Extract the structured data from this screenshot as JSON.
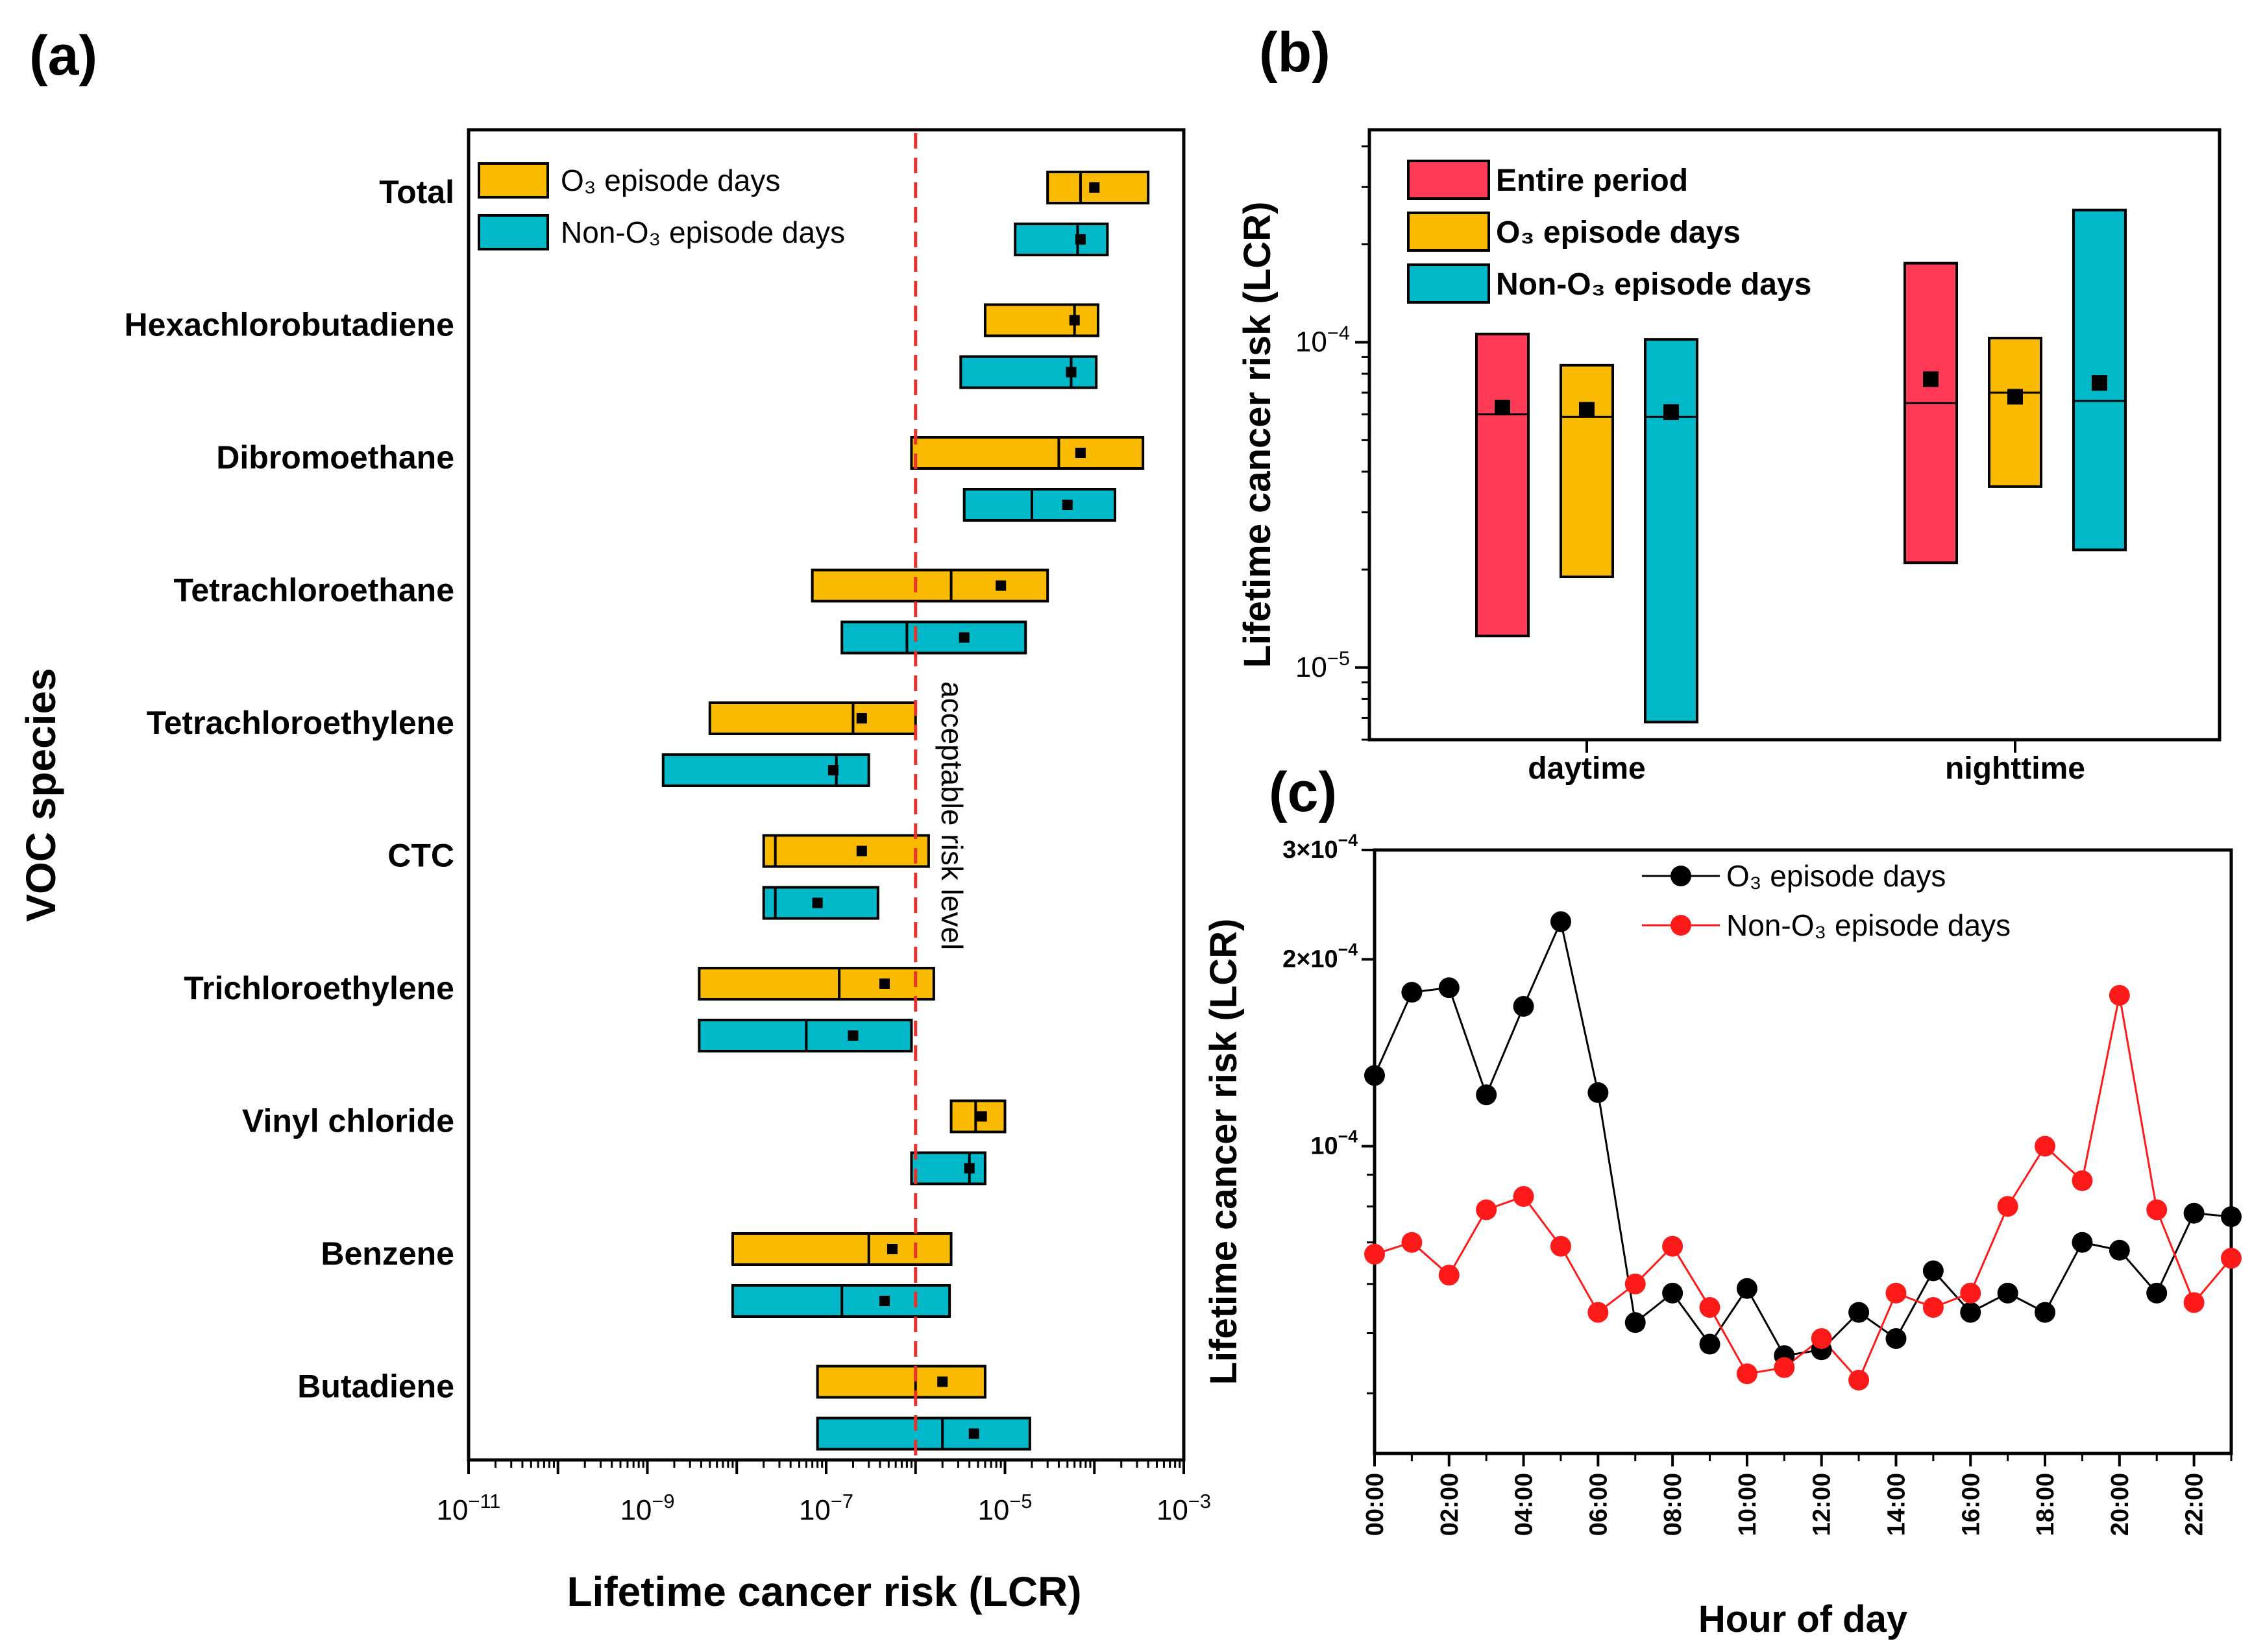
{
  "colors": {
    "o3": "#F9BA00",
    "non_o3": "#00B8C8",
    "entire": "#FF3B57",
    "line_o3": "#000000",
    "line_non_o3": "#FF1A1A",
    "threshold": "#E8312A"
  },
  "chart_data": [
    {
      "panel": "(a)",
      "type": "box",
      "scale": "log",
      "xlabel": "Lifetime cancer risk (LCR)",
      "ylabel": "VOC species",
      "xlim": [
        1e-11,
        0.001
      ],
      "xticks": [
        "10−11",
        "10−9",
        "10−7",
        "10−5",
        "10−3"
      ],
      "threshold": {
        "value": 1e-06,
        "label": "acceptable risk level"
      },
      "legend": [
        "O₃ episode days",
        "Non-O₃ episode days"
      ],
      "categories": [
        "Total",
        "Hexachlorobutadiene",
        "Dibromoethane",
        "Tetrachloroethane",
        "Tetrachloroethylene",
        "CTC",
        "Trichloroethylene",
        "Vinyl chloride",
        "Benzene",
        "Butadiene"
      ],
      "series": [
        {
          "name": "O₃ episode days",
          "boxes": [
            {
              "low": 3e-05,
              "median": 7e-05,
              "high": 0.0004,
              "mean": 0.0001
            },
            {
              "low": 6e-06,
              "median": 6e-05,
              "high": 0.00011,
              "mean": 6e-05
            },
            {
              "low": 9e-07,
              "median": 4e-05,
              "high": 0.00035,
              "mean": 7e-05
            },
            {
              "low": 7e-08,
              "median": 2.5e-06,
              "high": 3e-05,
              "mean": 9e-06
            },
            {
              "low": 5e-09,
              "median": 2e-07,
              "high": 1e-06,
              "mean": 2.5e-07
            },
            {
              "low": 2e-08,
              "median": 2.7e-08,
              "high": 1.4e-06,
              "mean": 2.5e-07
            },
            {
              "low": 3.8e-09,
              "median": 1.4e-07,
              "high": 1.6e-06,
              "mean": 4.5e-07
            },
            {
              "low": 2.5e-06,
              "median": 4.7e-06,
              "high": 1e-05,
              "mean": 5.5e-06
            },
            {
              "low": 9e-09,
              "median": 3e-07,
              "high": 2.5e-06,
              "mean": 5.5e-07
            },
            {
              "low": 8e-08,
              "median": 1e-06,
              "high": 6e-06,
              "mean": 2e-06
            }
          ]
        },
        {
          "name": "Non-O₃ episode days",
          "boxes": [
            {
              "low": 1.3e-05,
              "median": 6.5e-05,
              "high": 0.00014,
              "mean": 7e-05
            },
            {
              "low": 3.2e-06,
              "median": 5.5e-05,
              "high": 0.000105,
              "mean": 5.5e-05
            },
            {
              "low": 3.5e-06,
              "median": 2e-05,
              "high": 0.00017,
              "mean": 5e-05
            },
            {
              "low": 1.5e-07,
              "median": 8e-07,
              "high": 1.7e-05,
              "mean": 3.5e-06
            },
            {
              "low": 1.5e-09,
              "median": 1.3e-07,
              "high": 3e-07,
              "mean": 1.2e-07
            },
            {
              "low": 2e-08,
              "median": 2.7e-08,
              "high": 3.8e-07,
              "mean": 8e-08
            },
            {
              "low": 3.8e-09,
              "median": 6e-08,
              "high": 9e-07,
              "mean": 2e-07
            },
            {
              "low": 9e-07,
              "median": 4e-06,
              "high": 6e-06,
              "mean": 4e-06
            },
            {
              "low": 9e-09,
              "median": 1.5e-07,
              "high": 2.4e-06,
              "mean": 4.5e-07
            },
            {
              "low": 8e-08,
              "median": 2e-06,
              "high": 1.9e-05,
              "mean": 4.5e-06
            }
          ]
        }
      ]
    },
    {
      "panel": "(b)",
      "type": "box",
      "scale": "log",
      "ylabel": "Lifetime cancer risk (LCR)",
      "ylim": [
        6e-06,
        0.00045
      ],
      "yticks": [
        "10−4",
        "10−5"
      ],
      "categories": [
        "daytime",
        "nighttime"
      ],
      "legend": [
        "Entire period",
        "O₃ episode days",
        "Non-O₃ episode days"
      ],
      "series": [
        {
          "name": "Entire period",
          "boxes": [
            {
              "low": 1.25e-05,
              "median": 6e-05,
              "high": 0.000106,
              "mean": 6.3e-05
            },
            {
              "low": 2.1e-05,
              "median": 6.5e-05,
              "high": 0.000175,
              "mean": 7.7e-05
            }
          ]
        },
        {
          "name": "O₃ episode days",
          "boxes": [
            {
              "low": 1.9e-05,
              "median": 5.9e-05,
              "high": 8.5e-05,
              "mean": 6.2e-05
            },
            {
              "low": 3.6e-05,
              "median": 7e-05,
              "high": 0.000103,
              "mean": 6.8e-05
            }
          ]
        },
        {
          "name": "Non-O₃ episode days",
          "boxes": [
            {
              "low": 6.8e-06,
              "median": 5.9e-05,
              "high": 0.000102,
              "mean": 6.1e-05
            },
            {
              "low": 2.3e-05,
              "median": 6.6e-05,
              "high": 0.000255,
              "mean": 7.5e-05
            }
          ]
        }
      ]
    },
    {
      "panel": "(c)",
      "type": "line",
      "scale": "log",
      "xlabel": "Hour of day",
      "ylabel": "Lifetime cancer risk (LCR)",
      "ylim": [
        3.2e-05,
        0.0003
      ],
      "yticks": [
        "3×10−4",
        "2×10−4",
        "10−4"
      ],
      "x": [
        "00:00",
        "01:00",
        "02:00",
        "03:00",
        "04:00",
        "05:00",
        "06:00",
        "07:00",
        "08:00",
        "09:00",
        "10:00",
        "11:00",
        "12:00",
        "13:00",
        "14:00",
        "15:00",
        "16:00",
        "17:00",
        "18:00",
        "19:00",
        "20:00",
        "21:00",
        "22:00",
        "23:00"
      ],
      "xticks": [
        "00:00",
        "02:00",
        "04:00",
        "06:00",
        "08:00",
        "10:00",
        "12:00",
        "14:00",
        "16:00",
        "18:00",
        "20:00",
        "22:00"
      ],
      "series": [
        {
          "name": "O₃ episode days",
          "values": [
            0.00013,
            0.000177,
            0.00018,
            0.000121,
            0.000168,
            0.00023,
            0.000122,
            5.2e-05,
            5.8e-05,
            4.8e-05,
            5.9e-05,
            4.6e-05,
            4.7e-05,
            5.4e-05,
            4.9e-05,
            6.3e-05,
            5.4e-05,
            5.8e-05,
            5.4e-05,
            7e-05,
            6.8e-05,
            5.8e-05,
            7.8e-05,
            7.7e-05
          ]
        },
        {
          "name": "Non-O₃ episode days",
          "values": [
            6.7e-05,
            7e-05,
            6.2e-05,
            7.9e-05,
            8.3e-05,
            6.9e-05,
            5.4e-05,
            6e-05,
            6.9e-05,
            5.5e-05,
            4.3e-05,
            4.4e-05,
            4.9e-05,
            4.2e-05,
            5.8e-05,
            5.5e-05,
            5.8e-05,
            8e-05,
            0.0001,
            8.8e-05,
            0.000175,
            7.9e-05,
            5.6e-05,
            6.6e-05
          ]
        }
      ]
    }
  ]
}
